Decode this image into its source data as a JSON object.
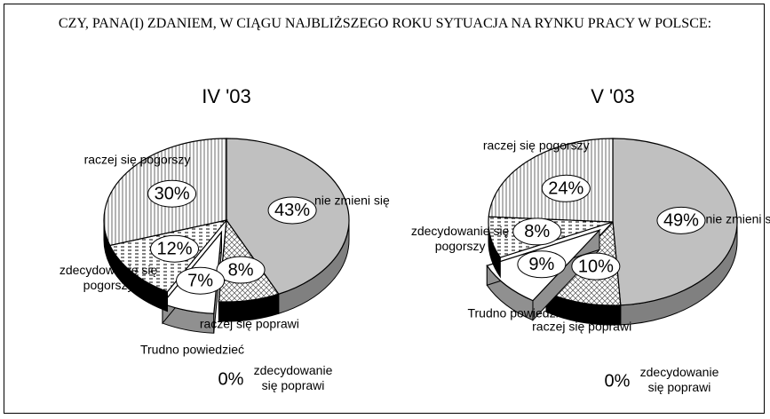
{
  "title": "CZY, PANA(I) ZDANIEM, W CIĄGU NAJBLIŻSZEGO ROKU SYTUACJA NA RYNKU PRACY W POLSCE:",
  "chart_data": [
    {
      "type": "pie",
      "title": "IV '03",
      "categories": [
        "nie zmieni się",
        "raczej się poprawi",
        "zdecydowanie się poprawi",
        "Trudno powiedzieć",
        "zdecydowanie się pogorszy",
        "raczej się pogorszy"
      ],
      "values": [
        43,
        8,
        0,
        7,
        12,
        30
      ],
      "value_labels": [
        "43%",
        "8%",
        "0%",
        "7%",
        "12%",
        "30%"
      ],
      "colors": [
        "#c0c0c0",
        "#e8e8e8",
        "#000000",
        "#ffffff",
        "#d0d0d0",
        "#f4f4f4"
      ]
    },
    {
      "type": "pie",
      "title": "V '03",
      "categories": [
        "nie zmieni się",
        "raczej się poprawi",
        "zdecydowanie się poprawi",
        "Trudno powiedzieć",
        "zdecydowanie się pogorszy",
        "raczej się pogorszy"
      ],
      "values": [
        49,
        10,
        0,
        9,
        8,
        24
      ],
      "value_labels": [
        "49%",
        "10%",
        "0%",
        "9%",
        "8%",
        "24%"
      ],
      "colors": [
        "#c0c0c0",
        "#e8e8e8",
        "#000000",
        "#ffffff",
        "#d0d0d0",
        "#f4f4f4"
      ]
    }
  ]
}
